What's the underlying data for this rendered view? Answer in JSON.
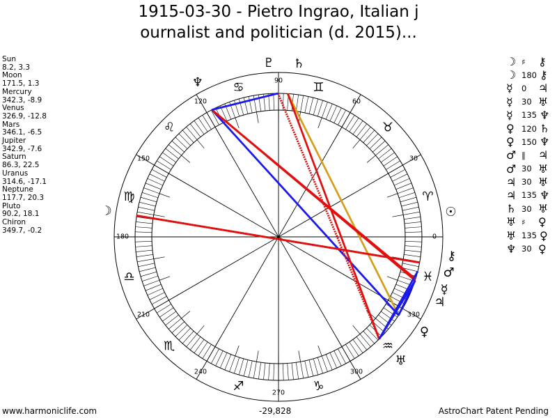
{
  "title": {
    "line1": "1915-03-30 - Pietro Ingrao, Italian j",
    "line2": "ournalist and politician (d. 2015)..."
  },
  "planets": [
    {
      "name": "Sun",
      "values": "8.2, 3.3",
      "glyph": "☉",
      "lon": 8.2
    },
    {
      "name": "Moon",
      "values": "171.5, 1.3",
      "glyph": "☽",
      "lon": 171.5
    },
    {
      "name": "Mercury",
      "values": "342.3, -8.9",
      "glyph": "☿",
      "lon": 342.3
    },
    {
      "name": "Venus",
      "values": "326.9, -12.8",
      "glyph": "♀",
      "lon": 326.9
    },
    {
      "name": "Mars",
      "values": "346.1, -6.5",
      "glyph": "♂",
      "lon": 346.1
    },
    {
      "name": "Jupiter",
      "values": "342.9, -7.6",
      "glyph": "♃",
      "lon": 342.9
    },
    {
      "name": "Saturn",
      "values": "86.3, 22.5",
      "glyph": "♄",
      "lon": 86.3
    },
    {
      "name": "Uranus",
      "values": "314.6, -17.1",
      "glyph": "♅",
      "lon": 314.6
    },
    {
      "name": "Neptune",
      "values": "117.7, 20.3",
      "glyph": "♆",
      "lon": 117.7
    },
    {
      "name": "Pluto",
      "values": "90.2, 18.1",
      "glyph": "♇",
      "lon": 90.2
    },
    {
      "name": "Chiron",
      "values": "349.7, -0.2",
      "glyph": "⚷",
      "lon": 349.7
    }
  ],
  "aspects": [
    {
      "p1": "☽",
      "sym": "♯",
      "p2": "⚷"
    },
    {
      "p1": "☽",
      "sym": "180",
      "p2": "⚷"
    },
    {
      "p1": "☿",
      "sym": "0",
      "p2": "♃"
    },
    {
      "p1": "☿",
      "sym": "30",
      "p2": "♅"
    },
    {
      "p1": "☿",
      "sym": "135",
      "p2": "♆"
    },
    {
      "p1": "♀",
      "sym": "120",
      "p2": "♄"
    },
    {
      "p1": "♀",
      "sym": "150",
      "p2": "♆"
    },
    {
      "p1": "♂",
      "sym": "∥",
      "p2": "♃"
    },
    {
      "p1": "♂",
      "sym": "30",
      "p2": "♅"
    },
    {
      "p1": "♃",
      "sym": "30",
      "p2": "♅"
    },
    {
      "p1": "♃",
      "sym": "135",
      "p2": "♆"
    },
    {
      "p1": "♄",
      "sym": "30",
      "p2": "♅"
    },
    {
      "p1": "♅",
      "sym": "♯",
      "p2": "♀"
    },
    {
      "p1": "♅",
      "sym": "135",
      "p2": "♀"
    },
    {
      "p1": "♆",
      "sym": "30",
      "p2": "♀"
    }
  ],
  "zodiac": [
    "♈",
    "♉",
    "♊",
    "♋",
    "♌",
    "♍",
    "♎",
    "♏",
    "♐",
    "♑",
    "♒",
    "♓"
  ],
  "degree_labels": [
    "0",
    "30",
    "60",
    "90",
    "120",
    "150",
    "180",
    "210",
    "240",
    "270",
    "300",
    "330"
  ],
  "chart_lines": [
    {
      "a": 86.3,
      "b": 326.9,
      "color": "#d4a020",
      "style": "solid"
    },
    {
      "a": 117.7,
      "b": 326.9,
      "color": "#1a1aee",
      "style": "solid"
    },
    {
      "a": 117.7,
      "b": 342.3,
      "color": "#e01010",
      "style": "solid"
    },
    {
      "a": 117.7,
      "b": 342.9,
      "color": "#e01010",
      "style": "solid"
    },
    {
      "a": 86.3,
      "b": 314.6,
      "color": "#e01010",
      "style": "solid"
    },
    {
      "a": 90.2,
      "b": 314.6,
      "color": "#e01010",
      "style": "dotted"
    },
    {
      "a": 171.5,
      "b": 349.7,
      "color": "#e01010",
      "style": "solid"
    },
    {
      "a": 171.5,
      "b": 349.7,
      "color": "#e01010",
      "style": "dotted"
    },
    {
      "a": 314.6,
      "b": 342.3,
      "color": "#1a1aee",
      "style": "solid"
    },
    {
      "a": 314.6,
      "b": 346.1,
      "color": "#1a1aee",
      "style": "solid"
    },
    {
      "a": 117.7,
      "b": 90.2,
      "color": "#1a1aee",
      "style": "solid"
    },
    {
      "a": 326.9,
      "b": 342.3,
      "color": "#1a1aee",
      "style": "solid"
    }
  ],
  "footer": {
    "left": "www.harmoniclife.com",
    "center": "-29,828",
    "right": "AstroChart Patent Pending"
  }
}
